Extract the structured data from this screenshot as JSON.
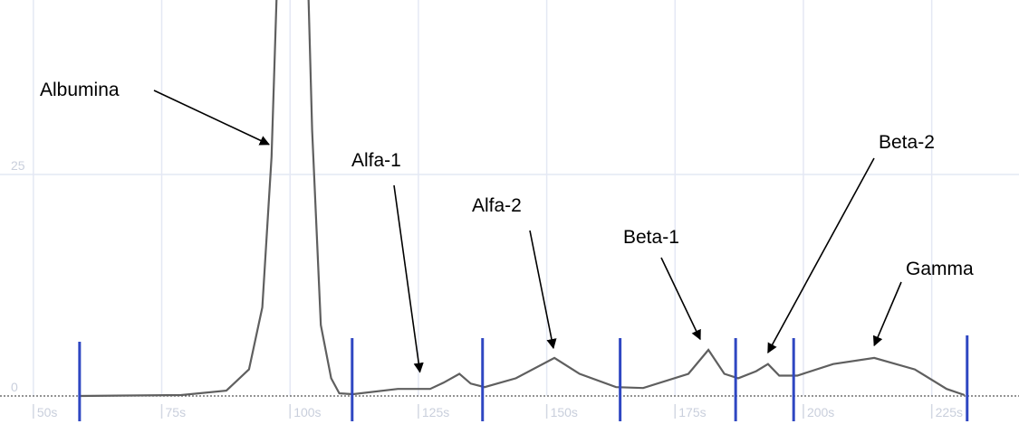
{
  "chart_data": {
    "type": "line",
    "x": [
      59,
      78.8,
      87.6,
      92,
      94.6,
      96.4,
      98.2,
      102.9,
      104.3,
      106,
      108,
      109.6,
      112.3,
      121,
      127.3,
      129.9,
      133,
      135.2,
      137.9,
      144,
      151.5,
      156.4,
      163.5,
      168.8,
      177.6,
      181.5,
      184.6,
      187.3,
      190.8,
      193.1,
      195.3,
      198.8,
      205.8,
      213.8,
      221.7,
      227.9,
      231.4
    ],
    "series": [
      {
        "color": "#5f5f5f",
        "values": [
          0,
          0.1,
          0.6,
          3,
          10,
          27,
          60,
          60,
          30,
          8,
          2,
          0.3,
          0.2,
          0.8,
          0.8,
          1.5,
          2.5,
          1.4,
          1.0,
          2,
          4.3,
          2.5,
          1.0,
          0.9,
          2.5,
          5.2,
          2.5,
          2.0,
          2.8,
          3.6,
          2.3,
          2.3,
          3.6,
          4.3,
          3,
          0.8,
          0.1
        ]
      }
    ],
    "separators": [
      59,
      112.1,
      137.5,
      164.3,
      186.8,
      198.1,
      231.9
    ],
    "separator_color": "#2f47c2",
    "xlim": [
      43.5,
      242
    ],
    "ylim": [
      0,
      44.7
    ],
    "xticks": [
      {
        "value": 50,
        "label": "50s"
      },
      {
        "value": 75,
        "label": "75s"
      },
      {
        "value": 100,
        "label": "100s"
      },
      {
        "value": 125,
        "label": "125s"
      },
      {
        "value": 150,
        "label": "150s"
      },
      {
        "value": 175,
        "label": "175s"
      },
      {
        "value": 200,
        "label": "200s"
      },
      {
        "value": 225,
        "label": "225s"
      }
    ],
    "yticks": [
      0,
      25
    ],
    "grid": true,
    "annotations": [
      {
        "text": "Albumina",
        "x": 95.9,
        "y": 28.4
      },
      {
        "text": "Alfa-1",
        "x": 125.3,
        "y": 2.7
      },
      {
        "text": "Alfa-2",
        "x": 151.3,
        "y": 5.4
      },
      {
        "text": "Beta-1",
        "x": 179.9,
        "y": 6.4
      },
      {
        "text": "Beta-2",
        "x": 193.1,
        "y": 4.9
      },
      {
        "text": "Gamma",
        "x": 213.8,
        "y": 5.7
      }
    ]
  }
}
